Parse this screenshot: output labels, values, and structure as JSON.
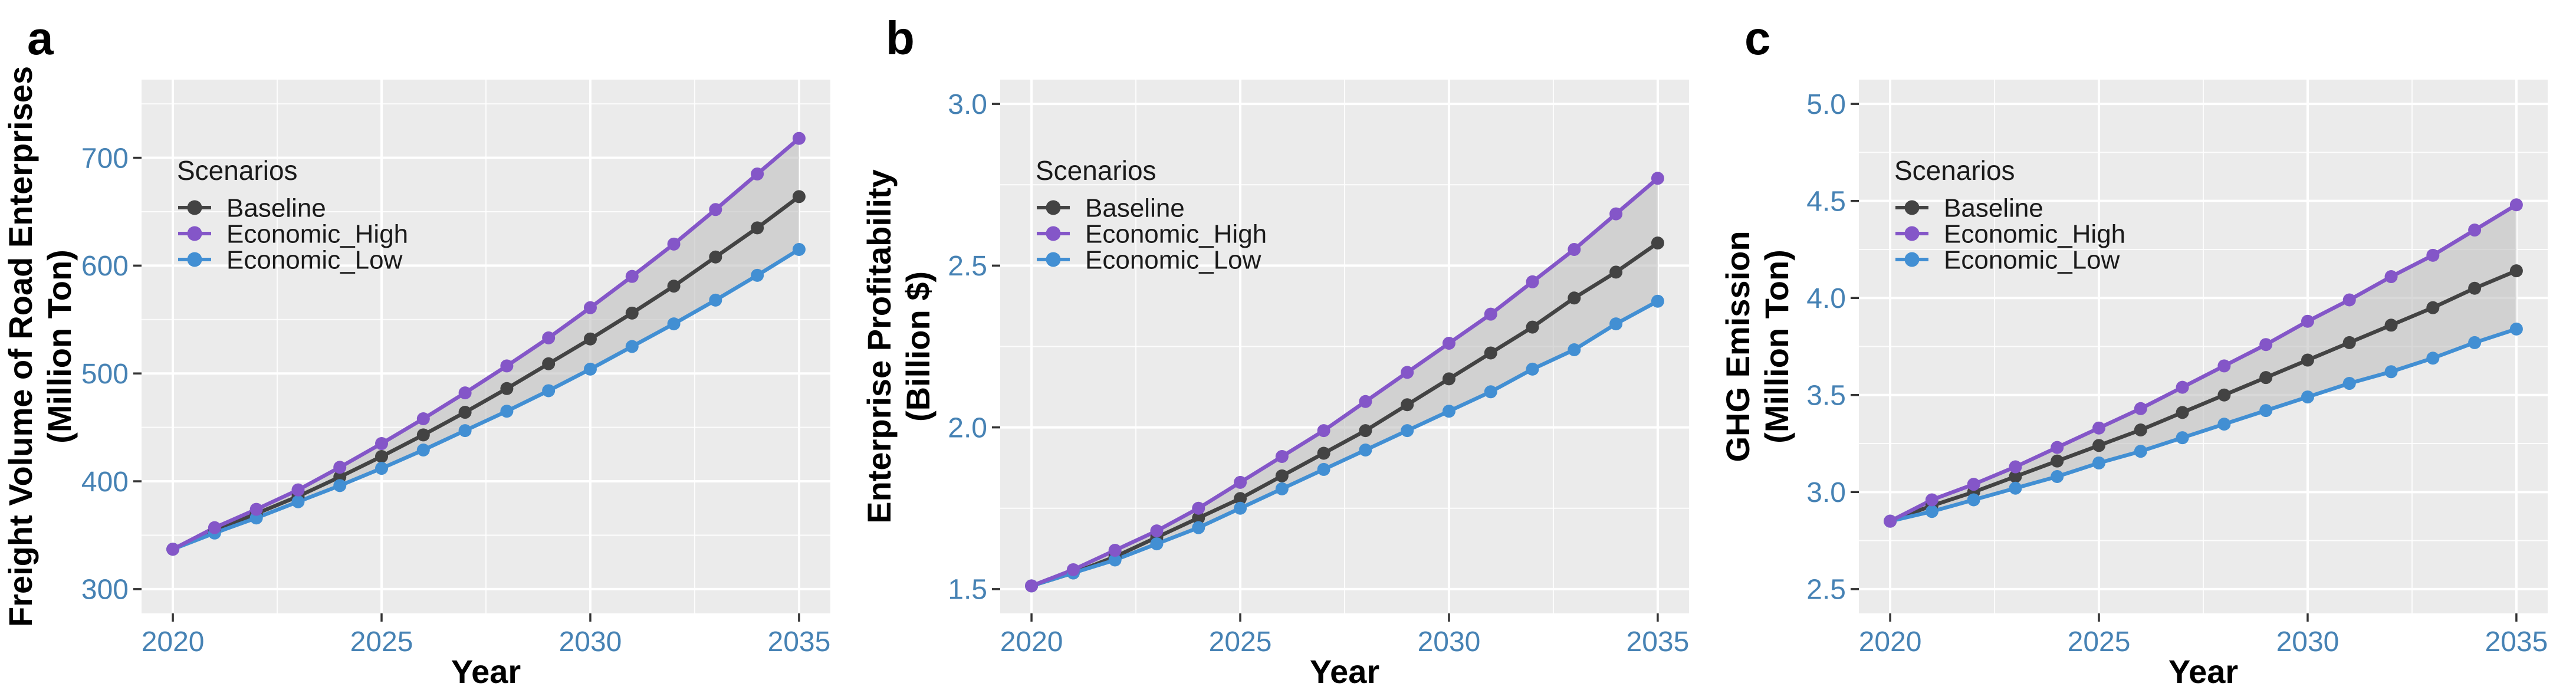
{
  "figure": {
    "background": "#ffffff",
    "panel_background": "#ebebeb",
    "grid_color": "#ffffff",
    "tick_mark_color": "#333333",
    "axis_text_color": "#4682b4",
    "axis_title_color": "#000000",
    "panel_letter_color": "#000000",
    "ribbon_fill": "#bfbfbf",
    "ribbon_opacity": 0.6
  },
  "legend": {
    "title": "Scenarios",
    "position": "inside-top-left",
    "items": [
      {
        "name": "Baseline",
        "color": "#434343"
      },
      {
        "name": "Economic_High",
        "color": "#8456c8"
      },
      {
        "name": "Economic_Low",
        "color": "#428fd3"
      }
    ]
  },
  "chart_data": [
    {
      "type": "line",
      "panel_label": "a",
      "title": "",
      "xlabel": "Year",
      "ylabel_lines": [
        "Freight Volume of Road Enterprises",
        "(Million Ton)"
      ],
      "x": [
        2020,
        2021,
        2022,
        2023,
        2024,
        2025,
        2026,
        2027,
        2028,
        2029,
        2030,
        2031,
        2032,
        2033,
        2034,
        2035
      ],
      "xlim": [
        2019.25,
        2035.75
      ],
      "xticks": [
        2020,
        2025,
        2030,
        2035
      ],
      "xtick_labels": [
        "2020",
        "2025",
        "2030",
        "2035"
      ],
      "xticks_minor": [
        2022.5,
        2027.5,
        2032.5
      ],
      "ylim": [
        277.5,
        772.5
      ],
      "yticks": [
        300,
        400,
        500,
        600,
        700
      ],
      "ytick_labels": [
        "300",
        "400",
        "500",
        "600",
        "700"
      ],
      "yticks_minor": [
        350,
        450,
        550,
        650,
        750
      ],
      "grid": true,
      "legend_inside": true,
      "ribbon": {
        "upper": "Economic_High",
        "lower": "Economic_Low"
      },
      "series": [
        {
          "name": "Baseline",
          "values": [
            337,
            354,
            370,
            386,
            404,
            423,
            443,
            464,
            486,
            509,
            532,
            556,
            581,
            608,
            635,
            664
          ]
        },
        {
          "name": "Economic_High",
          "values": [
            337,
            357,
            374,
            392,
            413,
            435,
            458,
            482,
            507,
            533,
            561,
            590,
            620,
            652,
            685,
            718
          ]
        },
        {
          "name": "Economic_Low",
          "values": [
            337,
            352,
            366,
            381,
            396,
            412,
            429,
            447,
            465,
            484,
            504,
            525,
            546,
            568,
            591,
            615
          ]
        }
      ]
    },
    {
      "type": "line",
      "panel_label": "b",
      "title": "",
      "xlabel": "Year",
      "ylabel_lines": [
        "Enterprise Profitability",
        "(Billion $)"
      ],
      "x": [
        2020,
        2021,
        2022,
        2023,
        2024,
        2025,
        2026,
        2027,
        2028,
        2029,
        2030,
        2031,
        2032,
        2033,
        2034,
        2035
      ],
      "xlim": [
        2019.25,
        2035.75
      ],
      "xticks": [
        2020,
        2025,
        2030,
        2035
      ],
      "xtick_labels": [
        "2020",
        "2025",
        "2030",
        "2035"
      ],
      "xticks_minor": [
        2022.5,
        2027.5,
        2032.5
      ],
      "ylim": [
        1.425,
        3.075
      ],
      "yticks": [
        1.5,
        2.0,
        2.5,
        3.0
      ],
      "ytick_labels": [
        "1.5",
        "2.0",
        "2.5",
        "3.0"
      ],
      "yticks_minor": [
        1.75,
        2.25,
        2.75
      ],
      "grid": true,
      "legend_inside": true,
      "ribbon": {
        "upper": "Economic_High",
        "lower": "Economic_Low"
      },
      "series": [
        {
          "name": "Baseline",
          "values": [
            1.51,
            1.55,
            1.6,
            1.66,
            1.72,
            1.78,
            1.85,
            1.92,
            1.99,
            2.07,
            2.15,
            2.23,
            2.31,
            2.4,
            2.48,
            2.57
          ]
        },
        {
          "name": "Economic_High",
          "values": [
            1.51,
            1.56,
            1.62,
            1.68,
            1.75,
            1.83,
            1.91,
            1.99,
            2.08,
            2.17,
            2.26,
            2.35,
            2.45,
            2.55,
            2.66,
            2.77
          ]
        },
        {
          "name": "Economic_Low",
          "values": [
            1.51,
            1.55,
            1.59,
            1.64,
            1.69,
            1.75,
            1.81,
            1.87,
            1.93,
            1.99,
            2.05,
            2.11,
            2.18,
            2.24,
            2.32,
            2.39
          ]
        }
      ]
    },
    {
      "type": "line",
      "panel_label": "c",
      "title": "",
      "xlabel": "Year",
      "ylabel_lines": [
        "GHG Emission",
        "(Million Ton)"
      ],
      "x": [
        2020,
        2021,
        2022,
        2023,
        2024,
        2025,
        2026,
        2027,
        2028,
        2029,
        2030,
        2031,
        2032,
        2033,
        2034,
        2035
      ],
      "xlim": [
        2019.25,
        2035.75
      ],
      "xticks": [
        2020,
        2025,
        2030,
        2035
      ],
      "xtick_labels": [
        "2020",
        "2025",
        "2030",
        "2035"
      ],
      "xticks_minor": [
        2022.5,
        2027.5,
        2032.5
      ],
      "ylim": [
        2.375,
        5.125
      ],
      "yticks": [
        2.5,
        3.0,
        3.5,
        4.0,
        4.5,
        5.0
      ],
      "ytick_labels": [
        "2.5",
        "3.0",
        "3.5",
        "4.0",
        "4.5",
        "5.0"
      ],
      "yticks_minor": [
        2.75,
        3.25,
        3.75,
        4.25,
        4.75
      ],
      "grid": true,
      "legend_inside": true,
      "ribbon": {
        "upper": "Economic_High",
        "lower": "Economic_Low"
      },
      "series": [
        {
          "name": "Baseline",
          "values": [
            2.85,
            2.93,
            3.0,
            3.08,
            3.16,
            3.24,
            3.32,
            3.41,
            3.5,
            3.59,
            3.68,
            3.77,
            3.86,
            3.95,
            4.05,
            4.14
          ]
        },
        {
          "name": "Economic_High",
          "values": [
            2.85,
            2.96,
            3.04,
            3.13,
            3.23,
            3.33,
            3.43,
            3.54,
            3.65,
            3.76,
            3.88,
            3.99,
            4.11,
            4.22,
            4.35,
            4.48
          ]
        },
        {
          "name": "Economic_Low",
          "values": [
            2.85,
            2.9,
            2.96,
            3.02,
            3.08,
            3.15,
            3.21,
            3.28,
            3.35,
            3.42,
            3.49,
            3.56,
            3.62,
            3.69,
            3.77,
            3.84
          ]
        }
      ]
    }
  ]
}
